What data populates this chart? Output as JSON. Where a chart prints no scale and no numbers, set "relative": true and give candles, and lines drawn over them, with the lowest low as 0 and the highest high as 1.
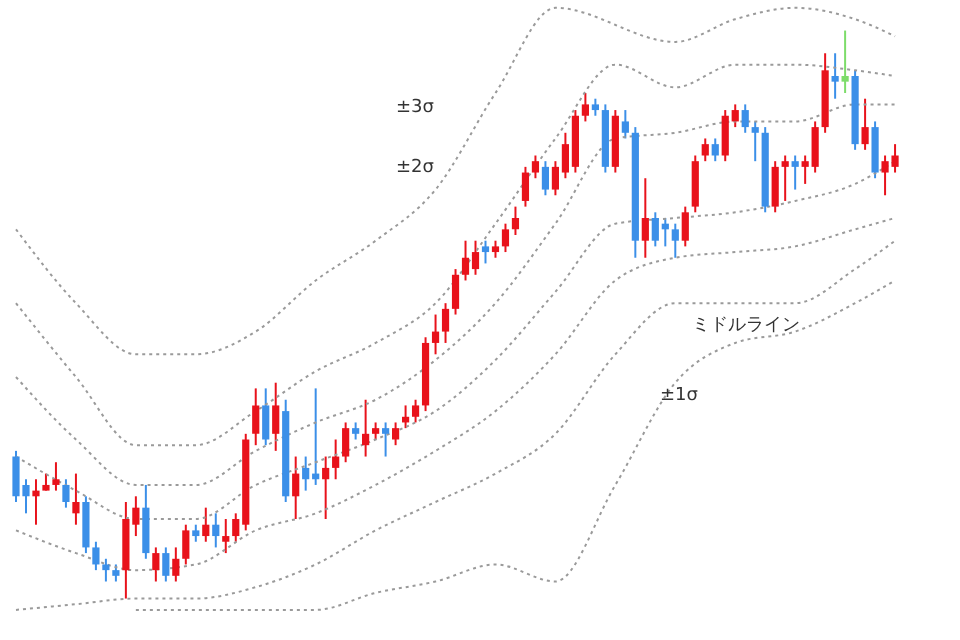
{
  "chart_data": {
    "type": "candlestick",
    "relative": true,
    "tick_labels": false,
    "categories": [
      null,
      null,
      null,
      null,
      null,
      null,
      null,
      null,
      null,
      null,
      null,
      null,
      null,
      null,
      null,
      null,
      null,
      null,
      null,
      null,
      null,
      null,
      null,
      null,
      null,
      null,
      null,
      null,
      null,
      null,
      null,
      null,
      null,
      null,
      null,
      null,
      null,
      null,
      null,
      null,
      null,
      null,
      null,
      null,
      null,
      null,
      null,
      null,
      null,
      null,
      null,
      null,
      null,
      null,
      null,
      null,
      null,
      null,
      null,
      null,
      null,
      null,
      null,
      null,
      null,
      null,
      null,
      null,
      null,
      null,
      null,
      null,
      null,
      null,
      null,
      null,
      null,
      null,
      null,
      null,
      null,
      null,
      null,
      null,
      null,
      null,
      null,
      null,
      null
    ],
    "ohlc": [
      [
        0.25,
        0.26,
        0.17,
        0.18
      ],
      [
        0.2,
        0.21,
        0.15,
        0.18
      ],
      [
        0.18,
        0.21,
        0.13,
        0.19
      ],
      [
        0.19,
        0.22,
        0.19,
        0.2
      ],
      [
        0.2,
        0.24,
        0.19,
        0.21
      ],
      [
        0.2,
        0.21,
        0.16,
        0.17
      ],
      [
        0.15,
        0.22,
        0.13,
        0.17
      ],
      [
        0.17,
        0.18,
        0.08,
        0.09
      ],
      [
        0.09,
        0.1,
        0.05,
        0.06
      ],
      [
        0.06,
        0.07,
        0.03,
        0.05
      ],
      [
        0.05,
        0.06,
        0.03,
        0.04
      ],
      [
        0.05,
        0.17,
        0,
        0.14
      ],
      [
        0.13,
        0.18,
        0.11,
        0.16
      ],
      [
        0.16,
        0.2,
        0.07,
        0.08
      ],
      [
        0.05,
        0.09,
        0.03,
        0.08
      ],
      [
        0.08,
        0.09,
        0.03,
        0.04
      ],
      [
        0.04,
        0.09,
        0.03,
        0.07
      ],
      [
        0.07,
        0.13,
        0.06,
        0.12
      ],
      [
        0.12,
        0.13,
        0.1,
        0.11
      ],
      [
        0.11,
        0.16,
        0.1,
        0.13
      ],
      [
        0.13,
        0.15,
        0.09,
        0.11
      ],
      [
        0.1,
        0.14,
        0.08,
        0.11
      ],
      [
        0.11,
        0.15,
        0.1,
        0.14
      ],
      [
        0.13,
        0.29,
        0.12,
        0.28
      ],
      [
        0.29,
        0.37,
        0.27,
        0.34
      ],
      [
        0.34,
        0.37,
        0.27,
        0.28
      ],
      [
        0.29,
        0.38,
        0.26,
        0.34
      ],
      [
        0.33,
        0.35,
        0.17,
        0.18
      ],
      [
        0.18,
        0.25,
        0.14,
        0.22
      ],
      [
        0.23,
        0.25,
        0.19,
        0.21
      ],
      [
        0.22,
        0.37,
        0.2,
        0.21
      ],
      [
        0.21,
        0.25,
        0.14,
        0.23
      ],
      [
        0.23,
        0.28,
        0.21,
        0.25
      ],
      [
        0.25,
        0.31,
        0.24,
        0.3
      ],
      [
        0.3,
        0.31,
        0.28,
        0.29
      ],
      [
        0.27,
        0.35,
        0.25,
        0.29
      ],
      [
        0.29,
        0.31,
        0.28,
        0.3
      ],
      [
        0.3,
        0.31,
        0.25,
        0.29
      ],
      [
        0.28,
        0.31,
        0.27,
        0.3
      ],
      [
        0.31,
        0.34,
        0.3,
        0.32
      ],
      [
        0.32,
        0.35,
        0.31,
        0.34
      ],
      [
        0.34,
        0.46,
        0.33,
        0.45
      ],
      [
        0.45,
        0.5,
        0.43,
        0.47
      ],
      [
        0.47,
        0.52,
        0.45,
        0.51
      ],
      [
        0.51,
        0.58,
        0.5,
        0.57
      ],
      [
        0.57,
        0.63,
        0.56,
        0.6
      ],
      [
        0.58,
        0.63,
        0.57,
        0.61
      ],
      [
        0.62,
        0.63,
        0.59,
        0.61
      ],
      [
        0.61,
        0.63,
        0.6,
        0.62
      ],
      [
        0.62,
        0.66,
        0.61,
        0.65
      ],
      [
        0.65,
        0.69,
        0.64,
        0.67
      ],
      [
        0.7,
        0.76,
        0.69,
        0.75
      ],
      [
        0.75,
        0.78,
        0.74,
        0.77
      ],
      [
        0.76,
        0.77,
        0.71,
        0.72
      ],
      [
        0.72,
        0.77,
        0.71,
        0.76
      ],
      [
        0.75,
        0.82,
        0.74,
        0.8
      ],
      [
        0.76,
        0.86,
        0.75,
        0.85
      ],
      [
        0.85,
        0.89,
        0.84,
        0.87
      ],
      [
        0.87,
        0.88,
        0.85,
        0.86
      ],
      [
        0.86,
        0.87,
        0.75,
        0.76
      ],
      [
        0.76,
        0.86,
        0.75,
        0.85
      ],
      [
        0.84,
        0.86,
        0.81,
        0.82
      ],
      [
        0.82,
        0.83,
        0.6,
        0.63
      ],
      [
        0.63,
        0.74,
        0.6,
        0.67
      ],
      [
        0.67,
        0.68,
        0.62,
        0.63
      ],
      [
        0.66,
        0.67,
        0.62,
        0.65
      ],
      [
        0.65,
        0.66,
        0.6,
        0.63
      ],
      [
        0.63,
        0.69,
        0.62,
        0.68
      ],
      [
        0.69,
        0.78,
        0.68,
        0.77
      ],
      [
        0.78,
        0.81,
        0.77,
        0.8
      ],
      [
        0.8,
        0.81,
        0.77,
        0.78
      ],
      [
        0.78,
        0.86,
        0.77,
        0.85
      ],
      [
        0.84,
        0.87,
        0.83,
        0.86
      ],
      [
        0.86,
        0.87,
        0.82,
        0.83
      ],
      [
        0.83,
        0.84,
        0.77,
        0.82
      ],
      [
        0.82,
        0.83,
        0.68,
        0.69
      ],
      [
        0.69,
        0.77,
        0.68,
        0.76
      ],
      [
        0.76,
        0.78,
        0.7,
        0.77
      ],
      [
        0.77,
        0.78,
        0.72,
        0.76
      ],
      [
        0.76,
        0.78,
        0.73,
        0.77
      ],
      [
        0.76,
        0.84,
        0.75,
        0.83
      ],
      [
        0.83,
        0.96,
        0.82,
        0.93
      ],
      [
        0.92,
        0.96,
        0.88,
        0.91
      ],
      [
        0.91,
        1,
        0.89,
        0.92
      ],
      [
        0.92,
        0.93,
        0.79,
        0.8
      ],
      [
        0.8,
        0.88,
        0.79,
        0.83
      ],
      [
        0.83,
        0.84,
        0.74,
        0.75
      ],
      [
        0.75,
        0.78,
        0.71,
        0.77
      ],
      [
        0.76,
        0.8,
        0.75,
        0.78
      ]
    ],
    "colors": [
      "#3b8fe8",
      "#3b8fe8",
      "#e8121b",
      "#e8121b",
      "#e8121b",
      "#3b8fe8",
      "#e8121b",
      "#3b8fe8",
      "#3b8fe8",
      "#3b8fe8",
      "#3b8fe8",
      "#e8121b",
      "#e8121b",
      "#3b8fe8",
      "#e8121b",
      "#3b8fe8",
      "#e8121b",
      "#e8121b",
      "#3b8fe8",
      "#e8121b",
      "#3b8fe8",
      "#e8121b",
      "#e8121b",
      "#e8121b",
      "#e8121b",
      "#3b8fe8",
      "#e8121b",
      "#3b8fe8",
      "#e8121b",
      "#3b8fe8",
      "#3b8fe8",
      "#e8121b",
      "#e8121b",
      "#e8121b",
      "#3b8fe8",
      "#e8121b",
      "#e8121b",
      "#3b8fe8",
      "#e8121b",
      "#e8121b",
      "#e8121b",
      "#e8121b",
      "#e8121b",
      "#e8121b",
      "#e8121b",
      "#e8121b",
      "#e8121b",
      "#3b8fe8",
      "#e8121b",
      "#e8121b",
      "#e8121b",
      "#e8121b",
      "#e8121b",
      "#3b8fe8",
      "#e8121b",
      "#e8121b",
      "#e8121b",
      "#e8121b",
      "#3b8fe8",
      "#3b8fe8",
      "#e8121b",
      "#3b8fe8",
      "#3b8fe8",
      "#e8121b",
      "#3b8fe8",
      "#3b8fe8",
      "#3b8fe8",
      "#e8121b",
      "#e8121b",
      "#e8121b",
      "#3b8fe8",
      "#e8121b",
      "#e8121b",
      "#3b8fe8",
      "#3b8fe8",
      "#3b8fe8",
      "#e8121b",
      "#e8121b",
      "#3b8fe8",
      "#e8121b",
      "#e8121b",
      "#e8121b",
      "#3b8fe8",
      "#7ddc6a",
      "#3b8fe8",
      "#e8121b",
      "#3b8fe8",
      "#e8121b",
      "#e8121b"
    ],
    "series": [
      {
        "type": "line",
        "color": "#9a9a9a",
        "line_style": "dotted",
        "values": [
          0.65,
          null,
          null,
          null,
          null,
          null,
          0.52,
          null,
          null,
          null,
          null,
          null,
          0.43,
          null,
          null,
          null,
          null,
          null,
          0.43,
          null,
          null,
          null,
          null,
          null,
          0.47,
          null,
          null,
          null,
          null,
          null,
          0.56,
          null,
          null,
          null,
          null,
          null,
          0.63,
          null,
          null,
          null,
          null,
          null,
          0.72,
          null,
          null,
          null,
          null,
          null,
          0.89,
          null,
          null,
          null,
          null,
          null,
          1.04,
          null,
          null,
          null,
          null,
          null,
          null,
          null,
          null,
          null,
          null,
          null,
          0.98,
          null,
          null,
          null,
          null,
          null,
          1.02,
          null,
          null,
          null,
          null,
          null,
          1.04,
          null,
          null,
          null,
          null,
          null,
          1.02,
          null,
          null,
          null,
          0.99
        ]
      },
      {
        "type": "line",
        "color": "#9a9a9a",
        "line_style": "dotted",
        "values": [
          0.52,
          null,
          null,
          null,
          null,
          null,
          0.39,
          null,
          null,
          null,
          null,
          null,
          0.27,
          null,
          null,
          null,
          null,
          null,
          0.27,
          null,
          null,
          null,
          null,
          null,
          0.33,
          null,
          null,
          null,
          null,
          null,
          0.4,
          null,
          null,
          null,
          null,
          null,
          0.45,
          null,
          null,
          null,
          null,
          null,
          0.52,
          null,
          null,
          null,
          null,
          null,
          0.66,
          null,
          null,
          null,
          null,
          null,
          0.81,
          null,
          null,
          null,
          null,
          null,
          0.94,
          null,
          null,
          null,
          null,
          null,
          0.9,
          null,
          null,
          null,
          null,
          null,
          0.94,
          null,
          null,
          null,
          null,
          null,
          0.94,
          null,
          null,
          null,
          null,
          null,
          0.93,
          null,
          null,
          null,
          0.92
        ]
      },
      {
        "type": "line",
        "color": "#9a9a9a",
        "line_style": "dotted",
        "values": [
          0.39,
          null,
          null,
          null,
          null,
          null,
          0.28,
          null,
          null,
          null,
          null,
          null,
          0.2,
          null,
          null,
          null,
          null,
          null,
          0.2,
          null,
          null,
          null,
          null,
          null,
          0.26,
          null,
          null,
          null,
          null,
          null,
          0.31,
          null,
          null,
          null,
          null,
          null,
          0.35,
          null,
          null,
          null,
          null,
          null,
          0.42,
          null,
          null,
          null,
          null,
          null,
          0.52,
          null,
          null,
          null,
          null,
          null,
          0.66,
          null,
          null,
          null,
          null,
          null,
          0.81,
          null,
          null,
          null,
          null,
          null,
          0.82,
          null,
          null,
          null,
          null,
          null,
          0.84,
          null,
          null,
          null,
          null,
          null,
          0.84,
          null,
          null,
          null,
          null,
          null,
          0.87,
          null,
          null,
          null,
          0.87
        ]
      },
      {
        "type": "line",
        "color": "#9a9a9a",
        "line_style": "dotted",
        "values": [
          0.25,
          null,
          null,
          null,
          null,
          null,
          0.19,
          null,
          null,
          null,
          null,
          null,
          0.14,
          null,
          null,
          null,
          null,
          null,
          0.14,
          null,
          null,
          null,
          null,
          null,
          0.2,
          null,
          null,
          null,
          null,
          null,
          0.24,
          null,
          null,
          null,
          null,
          null,
          0.28,
          null,
          null,
          null,
          null,
          null,
          0.33,
          null,
          null,
          null,
          null,
          null,
          0.42,
          null,
          null,
          null,
          null,
          null,
          0.54,
          null,
          null,
          null,
          null,
          null,
          0.66,
          null,
          null,
          null,
          null,
          null,
          0.67,
          null,
          null,
          null,
          null,
          null,
          0.68,
          null,
          null,
          null,
          null,
          null,
          0.7,
          null,
          null,
          null,
          null,
          null,
          0.73,
          null,
          null,
          null,
          0.77
        ]
      },
      {
        "type": "line",
        "color": "#9a9a9a",
        "line_style": "dotted",
        "values": [
          0.12,
          null,
          null,
          null,
          null,
          null,
          0.08,
          null,
          null,
          null,
          null,
          null,
          0.05,
          null,
          null,
          null,
          null,
          null,
          0.06,
          null,
          null,
          null,
          null,
          null,
          0.12,
          null,
          null,
          null,
          null,
          null,
          0.15,
          null,
          null,
          null,
          null,
          null,
          0.2,
          null,
          null,
          null,
          null,
          null,
          0.26,
          null,
          null,
          null,
          null,
          null,
          0.33,
          null,
          null,
          null,
          null,
          null,
          0.43,
          null,
          null,
          null,
          null,
          null,
          0.56,
          null,
          null,
          null,
          null,
          null,
          0.6,
          null,
          null,
          null,
          null,
          null,
          0.61,
          null,
          null,
          null,
          null,
          null,
          0.62,
          null,
          null,
          null,
          null,
          null,
          0.65,
          null,
          null,
          null,
          0.67
        ]
      },
      {
        "type": "line",
        "color": "#9a9a9a",
        "line_style": "dotted",
        "values": [
          -0.02,
          null,
          null,
          null,
          null,
          null,
          -0.01,
          null,
          null,
          null,
          null,
          null,
          0.0,
          null,
          null,
          null,
          null,
          null,
          0.0,
          null,
          null,
          null,
          null,
          null,
          0.02,
          null,
          null,
          null,
          null,
          null,
          0.06,
          null,
          null,
          null,
          null,
          null,
          0.12,
          null,
          null,
          null,
          null,
          null,
          0.17,
          null,
          null,
          null,
          null,
          null,
          0.22,
          null,
          null,
          null,
          null,
          null,
          0.29,
          null,
          null,
          null,
          null,
          null,
          0.43,
          null,
          null,
          null,
          null,
          null,
          0.52,
          null,
          null,
          null,
          null,
          null,
          0.52,
          null,
          null,
          null,
          null,
          null,
          0.52,
          null,
          null,
          null,
          null,
          null,
          0.58,
          null,
          null,
          null,
          0.63
        ]
      },
      {
        "type": "line",
        "color": "#9a9a9a",
        "line_style": "dotted",
        "values": [
          null,
          null,
          null,
          null,
          null,
          null,
          null,
          null,
          null,
          null,
          null,
          null,
          -0.02,
          null,
          null,
          null,
          null,
          null,
          -0.02,
          null,
          null,
          null,
          null,
          null,
          -0.02,
          null,
          null,
          null,
          null,
          null,
          -0.02,
          null,
          null,
          null,
          null,
          null,
          0.01,
          null,
          null,
          null,
          null,
          null,
          0.03,
          null,
          null,
          null,
          null,
          null,
          0.06,
          null,
          null,
          null,
          null,
          null,
          0.03,
          null,
          null,
          null,
          null,
          null,
          0.2,
          null,
          null,
          null,
          null,
          null,
          0.38,
          null,
          null,
          null,
          null,
          null,
          0.45,
          null,
          null,
          null,
          null,
          null,
          0.47,
          null,
          null,
          null,
          null,
          null,
          0.52,
          null,
          null,
          null,
          0.56
        ]
      }
    ],
    "annotations": [
      "±3σ",
      "±2σ",
      "ミドルライン",
      "±1σ"
    ]
  }
}
